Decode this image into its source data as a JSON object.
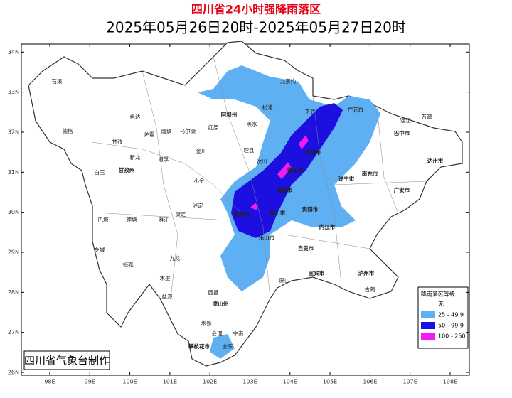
{
  "title": "四川省24小时强降雨落区",
  "subtitle": "2025年05月26日20时-2025年05月27日20时",
  "credit": "四川省气象台制作",
  "map": {
    "xlim": [
      97.29,
      108.48
    ],
    "ylim": [
      25.93,
      34.2
    ],
    "xticks": [
      {
        "value": 98,
        "label": "98E"
      },
      {
        "value": 99,
        "label": "99E"
      },
      {
        "value": 100,
        "label": "100E"
      },
      {
        "value": 101,
        "label": "101E"
      },
      {
        "value": 102,
        "label": "102E"
      },
      {
        "value": 103,
        "label": "103E"
      },
      {
        "value": 104,
        "label": "104E"
      },
      {
        "value": 105,
        "label": "105E"
      },
      {
        "value": 106,
        "label": "106E"
      },
      {
        "value": 107,
        "label": "107E"
      },
      {
        "value": 108,
        "label": "108E"
      }
    ],
    "yticks": [
      {
        "value": 26,
        "label": "26N"
      },
      {
        "value": 27,
        "label": "27N"
      },
      {
        "value": 28,
        "label": "28N"
      },
      {
        "value": 29,
        "label": "29N"
      },
      {
        "value": 30,
        "label": "30N"
      },
      {
        "value": 31,
        "label": "31N"
      },
      {
        "value": 32,
        "label": "32N"
      },
      {
        "value": 33,
        "label": "33N"
      },
      {
        "value": 34,
        "label": "34N"
      }
    ]
  },
  "legend": {
    "title": "降雨落区等级",
    "items": [
      {
        "label": "无",
        "color": "#ffffff"
      },
      {
        "label": "25 - 49.9",
        "color": "#5fb0f2"
      },
      {
        "label": "50 - 99.9",
        "color": "#1c0fe0"
      },
      {
        "label": "100 - 250",
        "color": "#f21cf2"
      }
    ]
  },
  "places": [
    "石渠",
    "德格",
    "色达",
    "甘孜",
    "炉霍",
    "白玉",
    "甘孜州",
    "新龙",
    "巴塘",
    "理塘",
    "雅江",
    "乡城",
    "稻城",
    "木里",
    "九龙",
    "康定",
    "泸定",
    "道孚",
    "阿坝州",
    "红原",
    "马尔康",
    "金川",
    "小金",
    "壤塘",
    "黑水",
    "理县",
    "汶川",
    "松潘",
    "九寨沟",
    "平武",
    "广元市",
    "巴中市",
    "万源",
    "通江",
    "达州市",
    "南充市",
    "广安市",
    "遂宁市",
    "绵阳市",
    "德阳市",
    "成都市",
    "资阳市",
    "内江市",
    "自贡市",
    "眉山市",
    "雅安市",
    "乐山市",
    "宜宾市",
    "泸州市",
    "凉山州",
    "西昌",
    "盐源",
    "米易",
    "攀枝花市",
    "会理",
    "宁南",
    "会东",
    "屏山",
    "古蔺"
  ]
}
